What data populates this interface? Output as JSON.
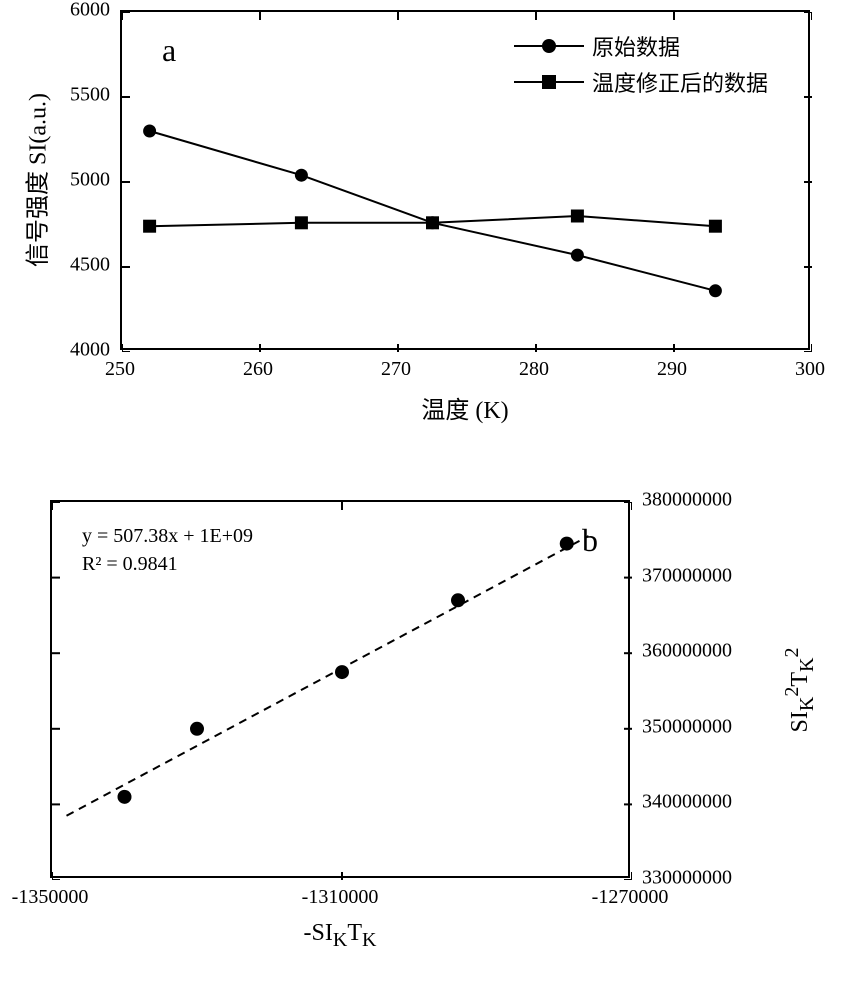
{
  "chart_a": {
    "type": "line",
    "panel_label": "a",
    "xlabel": "温度 (K)",
    "ylabel": "信号强度 SI(a.u.)",
    "xlim": [
      250,
      300
    ],
    "ylim": [
      4000,
      6000
    ],
    "xticks": [
      250,
      260,
      270,
      280,
      290,
      300
    ],
    "yticks": [
      4000,
      4500,
      5000,
      5500,
      6000
    ],
    "series": [
      {
        "name": "原始数据",
        "marker": "circle",
        "marker_size": 13,
        "line_style": "solid",
        "line_width": 2,
        "color": "#000000",
        "x": [
          252,
          263,
          272.5,
          283,
          293
        ],
        "y": [
          5300,
          5040,
          4760,
          4570,
          4360
        ]
      },
      {
        "name": "温度修正后的数据",
        "marker": "square",
        "marker_size": 13,
        "line_style": "solid",
        "line_width": 2,
        "color": "#000000",
        "x": [
          252,
          263,
          272.5,
          283,
          293
        ],
        "y": [
          4740,
          4760,
          4760,
          4800,
          4740
        ]
      }
    ],
    "legend_labels": [
      "原始数据",
      "温度修正后的数据"
    ],
    "background_color": "#ffffff",
    "border_color": "#000000",
    "tick_fontsize": 20,
    "label_fontsize": 24,
    "panel_letter_fontsize": 32
  },
  "chart_b": {
    "type": "scatter",
    "panel_label": "b",
    "xlabel_html": "-SI<sub>K</sub>T<sub>K</sub>",
    "ylabel_html": "SI<sub>K</sub><sup>2</sup>T<sub>K</sub><sup>2</sup>",
    "xlim": [
      -1350000,
      -1270000
    ],
    "ylim": [
      330000000,
      380000000
    ],
    "xticks": [
      -1350000,
      -1310000,
      -1270000
    ],
    "yticks": [
      330000000,
      340000000,
      350000000,
      360000000,
      370000000,
      380000000
    ],
    "scatter": {
      "marker": "circle",
      "marker_size": 14,
      "color": "#000000",
      "x": [
        -1340000,
        -1330000,
        -1310000,
        -1294000,
        -1279000
      ],
      "y": [
        341000000,
        350000000,
        357500000,
        367000000,
        374500000
      ]
    },
    "fit_line": {
      "style": "dashed",
      "width": 2,
      "color": "#000000",
      "x1": -1348000,
      "y1": 338500000,
      "x2": -1276000,
      "y2": 375500000
    },
    "annotation_lines": [
      "y = 507.38x + 1E+09",
      "R² = 0.9841"
    ],
    "background_color": "#ffffff",
    "border_color": "#000000",
    "tick_fontsize": 20,
    "label_fontsize": 24,
    "panel_letter_fontsize": 32
  }
}
